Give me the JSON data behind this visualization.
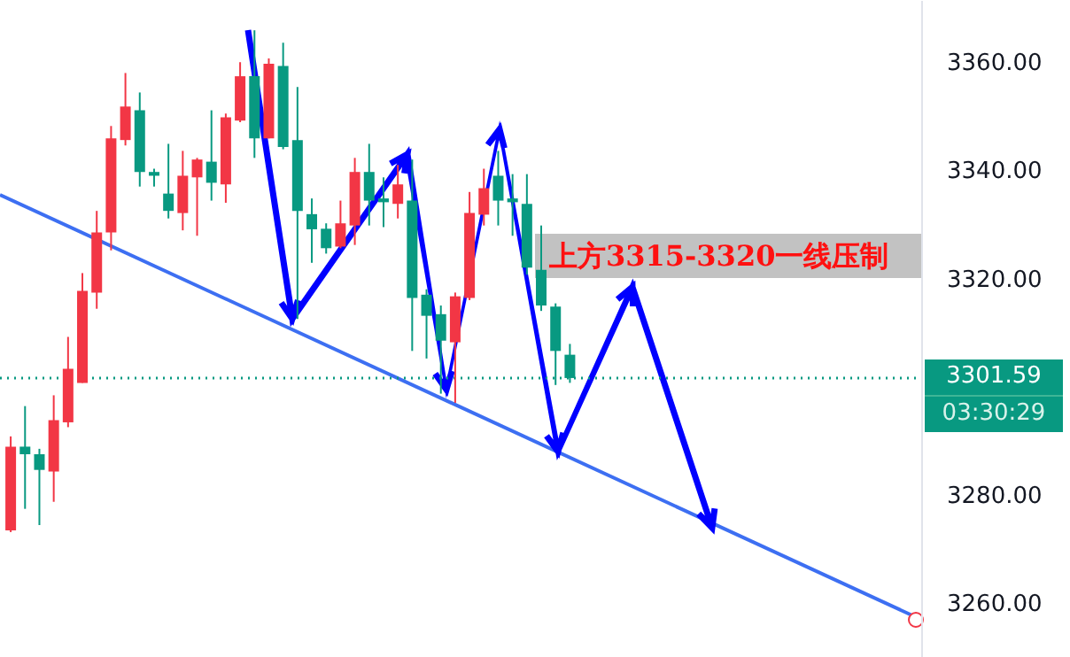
{
  "chart_data": {
    "type": "candlestick",
    "categories": [
      null,
      null,
      null,
      null,
      null,
      null,
      null,
      null,
      null,
      null,
      null,
      null,
      null,
      null,
      null,
      null,
      null,
      null,
      null,
      null,
      null,
      null,
      null,
      null,
      null,
      null,
      null,
      null,
      null,
      null,
      null,
      null,
      null,
      null,
      null,
      null,
      null,
      null,
      null,
      null,
      null,
      null,
      null,
      null,
      null,
      null,
      null,
      null,
      null,
      null,
      null,
      null,
      null,
      null,
      null,
      null,
      null,
      null,
      null,
      null,
      null,
      null,
      null,
      null
    ],
    "ohlc": [
      [
        3273.4,
        3290.8,
        3273.1,
        3288.9
      ],
      [
        3288.9,
        3296.4,
        3277.4,
        3287.5
      ],
      [
        3287.5,
        3288.5,
        3274.4,
        3284.6
      ],
      [
        3284.3,
        3298.4,
        3278.7,
        3293.8
      ],
      [
        3293.4,
        3309.2,
        3292.5,
        3303.3
      ],
      [
        3300.7,
        3321,
        3300.7,
        3317.7
      ],
      [
        3317.4,
        3332.5,
        3314.4,
        3328.5
      ],
      [
        3328.5,
        3348.2,
        3325.2,
        3345.9
      ],
      [
        3345.6,
        3358,
        3344.6,
        3351.8
      ],
      [
        3351.1,
        3354.4,
        3337,
        3339.7
      ],
      [
        3339.7,
        3340.3,
        3337,
        3339
      ],
      [
        3335.7,
        3344.9,
        3331.1,
        3332.5
      ],
      [
        3332.1,
        3343.6,
        3328.9,
        3339
      ],
      [
        3338.7,
        3342.3,
        3327.9,
        3342
      ],
      [
        3341.6,
        3351.1,
        3334.4,
        3337.7
      ],
      [
        3337.4,
        3350.5,
        3334,
        3349.8
      ],
      [
        3349.2,
        3360,
        3348.9,
        3357.4
      ],
      [
        3357.4,
        3365.9,
        3342.3,
        3345.9
      ],
      [
        3345.9,
        3360.7,
        3345.9,
        3359.7
      ],
      [
        3359.3,
        3363.6,
        3343.9,
        3344.3
      ],
      [
        3345.6,
        3355.4,
        3312.5,
        3332.5
      ],
      [
        3331.9,
        3334.8,
        3322.9,
        3329.1
      ],
      [
        3329.2,
        3330.2,
        3324.6,
        3325.6
      ],
      [
        3325.9,
        3334.4,
        3325.6,
        3330.2
      ],
      [
        3329.8,
        3342.3,
        3326.2,
        3339.7
      ],
      [
        3339.7,
        3344.9,
        3329.8,
        3334.4
      ],
      [
        3334.8,
        3338.7,
        3329.5,
        3334.1
      ],
      [
        3333.8,
        3341,
        3331.1,
        3337.4
      ],
      [
        3334.4,
        3342,
        3306.6,
        3316.4
      ],
      [
        3317,
        3318,
        3305.2,
        3313.1
      ],
      [
        3313.4,
        3315,
        3298.7,
        3308.5
      ],
      [
        3308.2,
        3317.4,
        3297,
        3316.7
      ],
      [
        3316.4,
        3336,
        3316,
        3332.1
      ],
      [
        3331.8,
        3340.3,
        3329.8,
        3336.7
      ],
      [
        3339,
        3343.6,
        3329.8,
        3334.4
      ],
      [
        3334.8,
        3339.3,
        3327.9,
        3334.1
      ],
      [
        3333.8,
        3339.3,
        3320.7,
        3322
      ],
      [
        3321.6,
        3329.8,
        3314,
        3315
      ],
      [
        3314.8,
        3315.4,
        3300.3,
        3306.6
      ],
      [
        3305.9,
        3307.9,
        3300.7,
        3301.59
      ],
      null,
      null,
      null,
      null,
      null,
      null,
      null,
      null,
      null,
      null,
      null,
      null,
      null,
      null,
      null,
      null,
      null,
      null,
      null,
      null,
      null,
      null,
      null,
      null
    ],
    "colors": [
      "#f23645",
      "#089981",
      "#089981",
      "#f23645",
      "#f23645",
      "#f23645",
      "#f23645",
      "#f23645",
      "#f23645",
      "#089981",
      "#089981",
      "#089981",
      "#f23645",
      "#f23645",
      "#089981",
      "#f23645",
      "#f23645",
      "#089981",
      "#f23645",
      "#089981",
      "#089981",
      "#089981",
      "#089981",
      "#f23645",
      "#f23645",
      "#089981",
      "#089981",
      "#f23645",
      "#089981",
      "#089981",
      "#089981",
      "#f23645",
      "#f23645",
      "#f23645",
      "#089981",
      "#089981",
      "#089981",
      "#089981",
      "#089981",
      "#089981",
      null,
      null,
      null,
      null,
      null,
      null,
      null,
      null,
      null,
      null,
      null,
      null,
      null,
      null,
      null,
      null,
      null,
      null,
      null,
      null,
      null,
      null,
      null,
      null
    ],
    "ylim": [
      3250,
      3371.5
    ],
    "yticks": [
      {
        "value": 3260,
        "label": "3260.00"
      },
      {
        "value": 3280,
        "label": "3280.00"
      },
      {
        "value": 3320,
        "label": "3320.00"
      },
      {
        "value": 3340,
        "label": "3340.00"
      },
      {
        "value": 3360,
        "label": "3360.00"
      }
    ],
    "ref_lines": [
      {
        "axis": "y",
        "value": 3301.59,
        "label": "3301.59",
        "color": "#089981",
        "line_style": "dotted"
      }
    ],
    "annotations": [
      "上方3315-3320一线压制",
      "03:30:29"
    ]
  }
}
